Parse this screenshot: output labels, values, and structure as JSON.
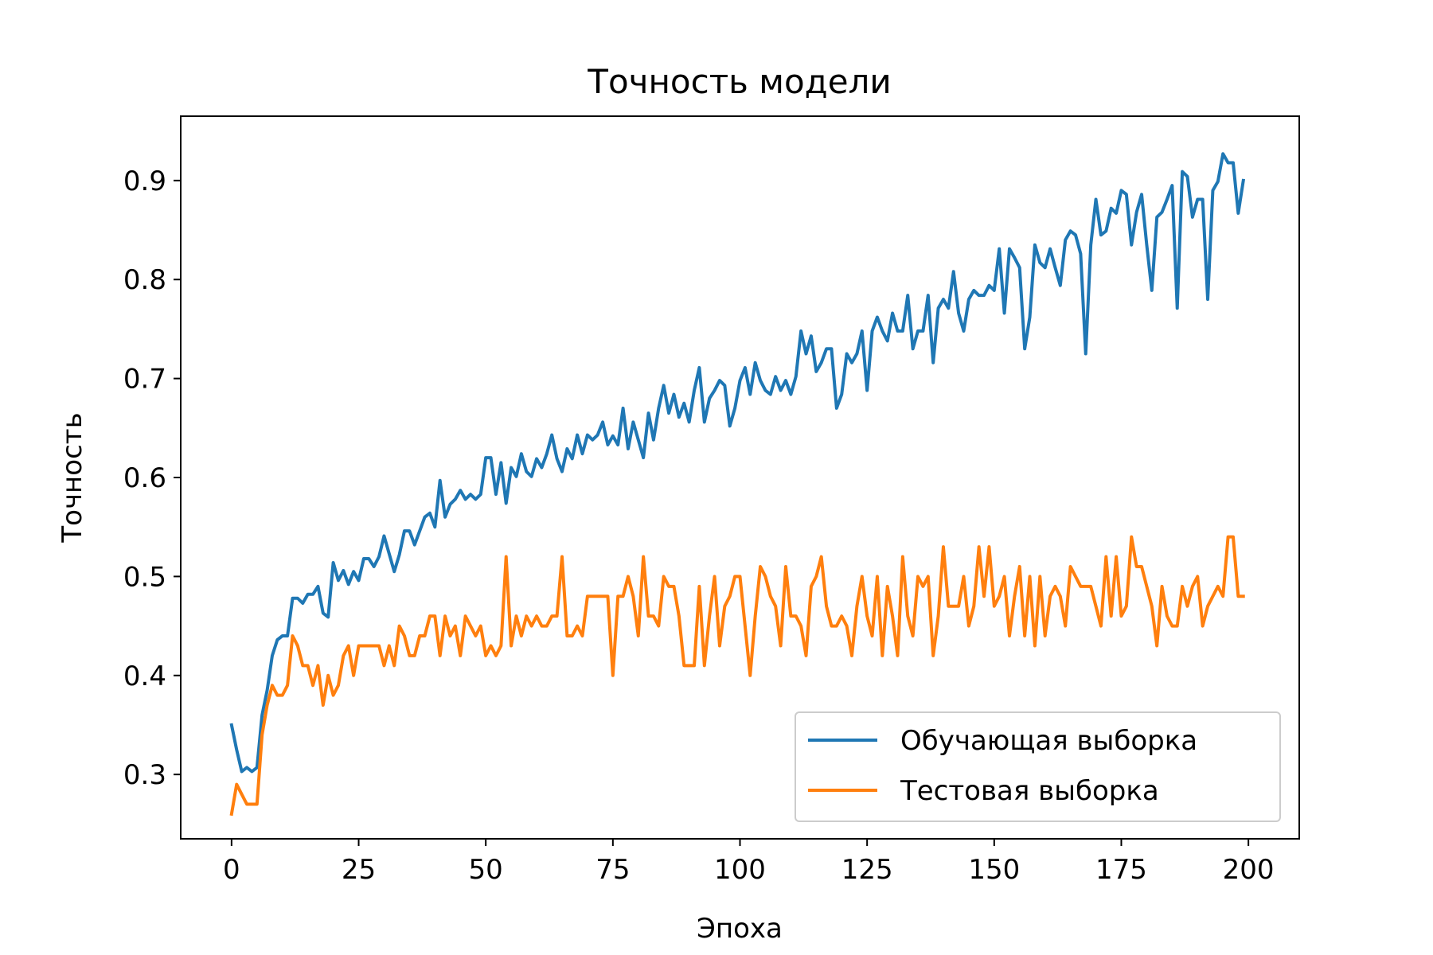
{
  "chart_data": {
    "type": "line",
    "title": "Точность модели",
    "xlabel": "Эпоха",
    "ylabel": "Точность",
    "xlim": [
      -10,
      210
    ],
    "ylim": [
      0.235,
      0.965
    ],
    "xticks": [
      0,
      25,
      50,
      75,
      100,
      125,
      150,
      175,
      200
    ],
    "yticks": [
      0.3,
      0.4,
      0.5,
      0.6,
      0.7,
      0.8,
      0.9
    ],
    "grid": false,
    "legend_position": "lower-right",
    "series": [
      {
        "name": "Обучающая выборка",
        "color": "#1f77b4",
        "x_start": 0,
        "x_step": 1,
        "values": [
          0.35,
          0.325,
          0.303,
          0.307,
          0.303,
          0.307,
          0.36,
          0.385,
          0.42,
          0.436,
          0.44,
          0.44,
          0.478,
          0.478,
          0.473,
          0.482,
          0.482,
          0.49,
          0.463,
          0.459,
          0.514,
          0.496,
          0.506,
          0.492,
          0.505,
          0.496,
          0.518,
          0.518,
          0.51,
          0.52,
          0.541,
          0.523,
          0.505,
          0.522,
          0.546,
          0.546,
          0.532,
          0.546,
          0.56,
          0.564,
          0.55,
          0.597,
          0.56,
          0.573,
          0.578,
          0.587,
          0.578,
          0.583,
          0.578,
          0.583,
          0.62,
          0.62,
          0.583,
          0.615,
          0.574,
          0.61,
          0.601,
          0.624,
          0.606,
          0.601,
          0.619,
          0.61,
          0.624,
          0.643,
          0.619,
          0.606,
          0.629,
          0.619,
          0.643,
          0.624,
          0.643,
          0.638,
          0.643,
          0.656,
          0.633,
          0.642,
          0.633,
          0.67,
          0.629,
          0.656,
          0.638,
          0.62,
          0.665,
          0.638,
          0.67,
          0.693,
          0.665,
          0.684,
          0.661,
          0.675,
          0.656,
          0.688,
          0.711,
          0.656,
          0.68,
          0.688,
          0.698,
          0.693,
          0.652,
          0.67,
          0.698,
          0.711,
          0.684,
          0.716,
          0.698,
          0.688,
          0.684,
          0.702,
          0.688,
          0.698,
          0.684,
          0.702,
          0.748,
          0.725,
          0.743,
          0.707,
          0.716,
          0.73,
          0.73,
          0.67,
          0.684,
          0.725,
          0.716,
          0.725,
          0.748,
          0.688,
          0.748,
          0.762,
          0.748,
          0.738,
          0.766,
          0.748,
          0.748,
          0.784,
          0.73,
          0.748,
          0.748,
          0.784,
          0.716,
          0.771,
          0.78,
          0.771,
          0.808,
          0.766,
          0.748,
          0.78,
          0.789,
          0.784,
          0.784,
          0.794,
          0.789,
          0.831,
          0.766,
          0.831,
          0.822,
          0.812,
          0.73,
          0.762,
          0.835,
          0.817,
          0.812,
          0.831,
          0.812,
          0.794,
          0.84,
          0.849,
          0.845,
          0.826,
          0.725,
          0.835,
          0.881,
          0.845,
          0.849,
          0.872,
          0.867,
          0.89,
          0.886,
          0.835,
          0.868,
          0.886,
          0.835,
          0.789,
          0.863,
          0.868,
          0.881,
          0.895,
          0.771,
          0.909,
          0.904,
          0.863,
          0.881,
          0.881,
          0.78,
          0.89,
          0.899,
          0.927,
          0.918,
          0.918,
          0.867,
          0.9
        ]
      },
      {
        "name": "Тестовая выборка",
        "color": "#ff7f0e",
        "x_start": 0,
        "x_step": 1,
        "values": [
          0.26,
          0.29,
          0.28,
          0.27,
          0.27,
          0.27,
          0.34,
          0.37,
          0.39,
          0.38,
          0.38,
          0.39,
          0.44,
          0.43,
          0.41,
          0.41,
          0.39,
          0.41,
          0.37,
          0.4,
          0.38,
          0.39,
          0.42,
          0.43,
          0.4,
          0.43,
          0.43,
          0.43,
          0.43,
          0.43,
          0.41,
          0.43,
          0.41,
          0.45,
          0.44,
          0.42,
          0.42,
          0.44,
          0.44,
          0.46,
          0.46,
          0.42,
          0.46,
          0.44,
          0.45,
          0.42,
          0.46,
          0.45,
          0.44,
          0.45,
          0.42,
          0.43,
          0.42,
          0.43,
          0.52,
          0.43,
          0.46,
          0.44,
          0.46,
          0.45,
          0.46,
          0.45,
          0.45,
          0.46,
          0.46,
          0.52,
          0.44,
          0.44,
          0.45,
          0.44,
          0.48,
          0.48,
          0.48,
          0.48,
          0.48,
          0.4,
          0.48,
          0.48,
          0.5,
          0.48,
          0.44,
          0.52,
          0.46,
          0.46,
          0.45,
          0.5,
          0.49,
          0.49,
          0.46,
          0.41,
          0.41,
          0.41,
          0.49,
          0.41,
          0.46,
          0.5,
          0.43,
          0.47,
          0.48,
          0.5,
          0.5,
          0.45,
          0.4,
          0.46,
          0.51,
          0.5,
          0.48,
          0.47,
          0.43,
          0.51,
          0.46,
          0.46,
          0.45,
          0.42,
          0.49,
          0.5,
          0.52,
          0.47,
          0.45,
          0.45,
          0.46,
          0.45,
          0.42,
          0.47,
          0.5,
          0.46,
          0.44,
          0.5,
          0.42,
          0.49,
          0.46,
          0.42,
          0.52,
          0.46,
          0.44,
          0.5,
          0.49,
          0.5,
          0.42,
          0.46,
          0.53,
          0.47,
          0.47,
          0.47,
          0.5,
          0.45,
          0.47,
          0.53,
          0.48,
          0.53,
          0.47,
          0.48,
          0.5,
          0.44,
          0.48,
          0.51,
          0.44,
          0.5,
          0.43,
          0.5,
          0.44,
          0.48,
          0.49,
          0.48,
          0.45,
          0.51,
          0.5,
          0.49,
          0.49,
          0.49,
          0.47,
          0.45,
          0.52,
          0.46,
          0.52,
          0.46,
          0.47,
          0.54,
          0.51,
          0.51,
          0.49,
          0.47,
          0.43,
          0.49,
          0.46,
          0.45,
          0.45,
          0.49,
          0.47,
          0.49,
          0.5,
          0.45,
          0.47,
          0.48,
          0.49,
          0.48,
          0.54,
          0.54,
          0.48,
          0.48
        ]
      }
    ]
  }
}
